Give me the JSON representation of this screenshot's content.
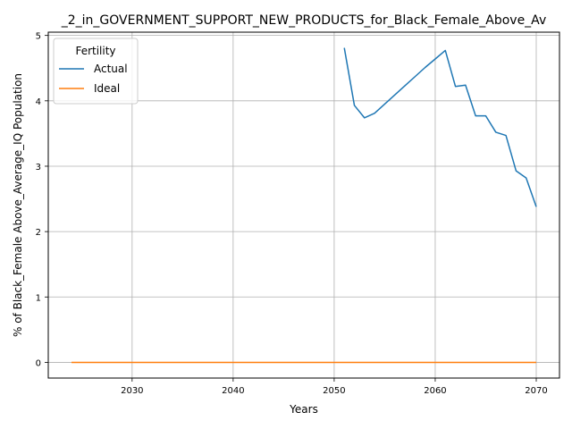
{
  "chart_data": {
    "type": "line",
    "title": "_2_in_GOVERNMENT_SUPPORT_NEW_PRODUCTS_for_Black_Female_Above_Av",
    "xlabel": "Years",
    "ylabel": "% of Black_Female Above_Average_IQ Population",
    "xlim": [
      2021.7,
      2072.3
    ],
    "ylim": [
      -0.24,
      5.05
    ],
    "xticks": [
      2030,
      2040,
      2050,
      2060,
      2070
    ],
    "yticks": [
      0,
      1,
      2,
      3,
      4,
      5
    ],
    "grid": true,
    "legend": {
      "title": "Fertility",
      "placement": "top-left"
    },
    "series": [
      {
        "name": "Actual",
        "color": "#1f77b4",
        "x": [
          2051,
          2052,
          2053,
          2054,
          2055,
          2056,
          2057,
          2058,
          2059,
          2060,
          2061,
          2062,
          2063,
          2064,
          2065,
          2066,
          2067,
          2068,
          2069,
          2070
        ],
        "y": [
          4.81,
          3.93,
          3.74,
          3.81,
          3.95,
          4.09,
          4.23,
          4.37,
          4.51,
          4.64,
          4.77,
          4.22,
          4.24,
          3.77,
          3.77,
          3.52,
          3.47,
          2.93,
          2.82,
          2.38
        ]
      },
      {
        "name": "Ideal",
        "color": "#ff7f0e",
        "x": [
          2024,
          2030,
          2040,
          2050,
          2060,
          2070
        ],
        "y": [
          0,
          0,
          0,
          0,
          0,
          0
        ]
      }
    ]
  }
}
